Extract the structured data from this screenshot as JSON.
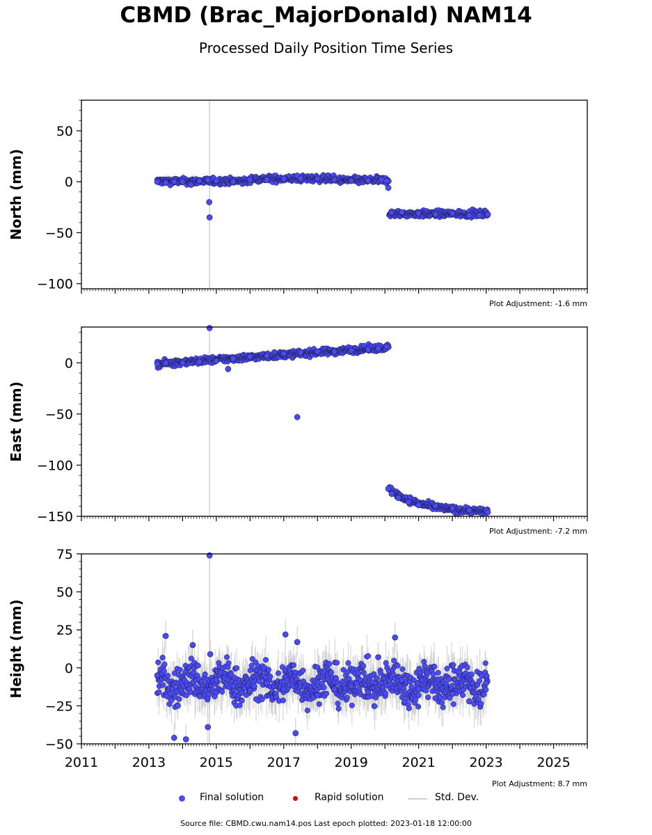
{
  "title": "CBMD (Brac_MajorDonald) NAM14",
  "subtitle": "Processed Daily Position Time Series",
  "legend": {
    "final": "Final solution",
    "rapid": "Rapid solution",
    "stddev": "Std. Dev."
  },
  "source": "Source file: CBMD.cwu.nam14.pos  Last epoch plotted: 2023-01-18 12:00:00",
  "colors": {
    "final": "#4b4bf5",
    "rapid": "#e00000",
    "stddev": "#d0d0d0"
  },
  "chart_data": [
    {
      "type": "scatter",
      "component": "north",
      "ylabel": "North (mm)",
      "adjustment": "Plot Adjustment: -1.6 mm",
      "ylim": [
        -105,
        80
      ],
      "yticks": [
        50,
        0,
        -50,
        -100
      ],
      "ytick_labels": [
        "50",
        "0",
        "−50",
        "−100"
      ],
      "xlim": [
        2011,
        2026
      ],
      "series": [
        {
          "name": "Final solution",
          "x": [
            2013.25,
            2013.5,
            2013.75,
            2014.0,
            2014.25,
            2014.5,
            2014.75,
            2014.79,
            2014.8,
            2015.0,
            2015.5,
            2016.0,
            2016.5,
            2017.0,
            2017.4,
            2017.5,
            2018.0,
            2018.5,
            2019.0,
            2019.5,
            2019.9,
            2020.05,
            2020.1,
            2020.2,
            2020.5,
            2021.0,
            2021.5,
            2022.0,
            2022.5,
            2022.8,
            2023.05
          ],
          "y": [
            0,
            -1,
            0,
            0,
            -3,
            1,
            2,
            -20,
            -35,
            1,
            0,
            2,
            2,
            3,
            6,
            3,
            3,
            2,
            1,
            1,
            2,
            1,
            -6,
            -30,
            -30,
            -31,
            -32,
            -31,
            -33,
            -33,
            -32
          ]
        }
      ]
    },
    {
      "type": "scatter",
      "component": "east",
      "ylabel": "East (mm)",
      "adjustment": "Plot Adjustment: -7.2 mm",
      "ylim": [
        -150,
        35
      ],
      "yticks": [
        0,
        -50,
        -100,
        -150
      ],
      "ytick_labels": [
        "0",
        "−50",
        "−100",
        "−150"
      ],
      "xlim": [
        2011,
        2026
      ],
      "series": [
        {
          "name": "Final solution",
          "x": [
            2013.25,
            2013.5,
            2014.0,
            2014.5,
            2014.8,
            2015.0,
            2015.35,
            2015.5,
            2016.0,
            2016.5,
            2017.0,
            2017.4,
            2017.5,
            2018.0,
            2018.5,
            2019.0,
            2019.5,
            2019.8,
            2020.05,
            2020.1,
            2020.2,
            2020.4,
            2020.7,
            2021.0,
            2021.5,
            2022.0,
            2022.5,
            2023.0,
            2023.05
          ],
          "y": [
            -1,
            0,
            0,
            1,
            34,
            2,
            -6,
            4,
            6,
            7,
            9,
            -53,
            10,
            11,
            11,
            12,
            13,
            14,
            16,
            -123,
            -128,
            -132,
            -136,
            -139,
            -140,
            -142,
            -144,
            -144,
            -146
          ]
        }
      ]
    },
    {
      "type": "scatter",
      "component": "height",
      "ylabel": "Height (mm)",
      "adjustment": "Plot Adjustment: 8.7 mm",
      "ylim": [
        -50,
        75
      ],
      "yticks": [
        75,
        50,
        25,
        0,
        -25,
        -50
      ],
      "ytick_labels": [
        "75",
        "50",
        "25",
        "0",
        "−25",
        "−50"
      ],
      "xlim": [
        2011,
        2026
      ],
      "xticks": [
        2011,
        2013,
        2015,
        2017,
        2019,
        2021,
        2023,
        2025
      ],
      "xtick_labels": [
        "2011",
        "2013",
        "2015",
        "2017",
        "2019",
        "2021",
        "2023",
        "2025"
      ],
      "series": [
        {
          "name": "Final solution",
          "x": [
            2013.25,
            2013.5,
            2013.75,
            2014.1,
            2014.3,
            2014.75,
            2014.8,
            2014.82,
            2015.0,
            2015.5,
            2016.0,
            2016.5,
            2017.0,
            2017.05,
            2017.35,
            2017.4,
            2018.0,
            2018.5,
            2019.0,
            2019.5,
            2019.8,
            2020.3,
            2020.5,
            2021.0,
            2021.5,
            2022.0,
            2022.5,
            2023.0
          ],
          "y": [
            -5,
            21,
            -46,
            -47,
            15,
            -39,
            74,
            9,
            -8,
            -12,
            -15,
            -10,
            -14,
            22,
            -43,
            17,
            -18,
            -14,
            -12,
            -16,
            7,
            20,
            -8,
            -14,
            -20,
            -17,
            -22,
            -10
          ]
        }
      ]
    }
  ]
}
